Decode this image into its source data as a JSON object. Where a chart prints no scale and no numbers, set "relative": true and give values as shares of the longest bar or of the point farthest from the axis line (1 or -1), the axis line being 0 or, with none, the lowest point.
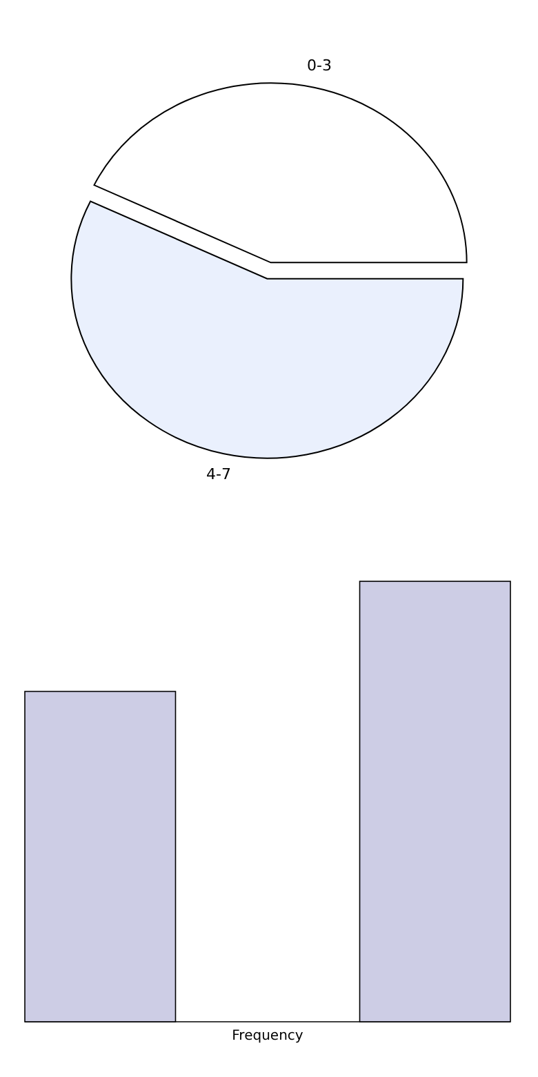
{
  "chart_data": [
    {
      "type": "pie",
      "categories": [
        "0-3",
        "4-7"
      ],
      "values": [
        42.9,
        57.1
      ],
      "colors": [
        "#ffffff",
        "#eaf0fd"
      ]
    },
    {
      "type": "bar",
      "categories": [
        null,
        null
      ],
      "values": [
        0.75,
        1
      ],
      "relative": true,
      "color": "#cdcde5",
      "xlabel": "Frequency"
    }
  ]
}
